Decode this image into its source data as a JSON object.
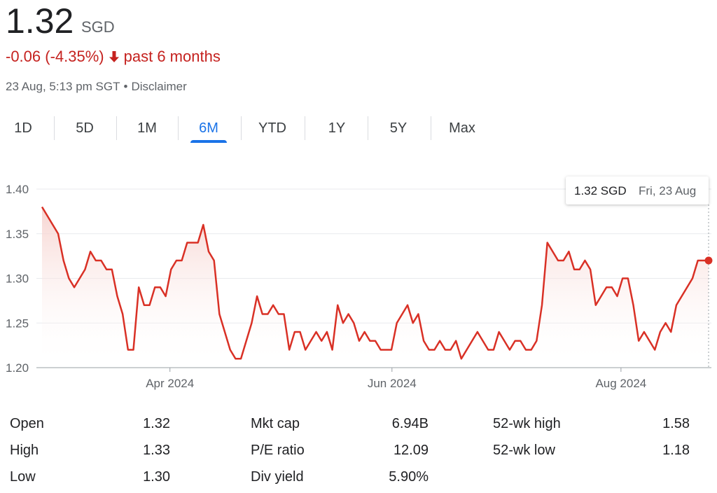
{
  "header": {
    "price": "1.32",
    "currency": "SGD",
    "change": "-0.06 (-4.35%)",
    "period": "past 6 months",
    "timestamp": "23 Aug, 5:13 pm SGT",
    "separator": "•",
    "disclaimer": "Disclaimer"
  },
  "tabs": {
    "items": [
      "1D",
      "5D",
      "1M",
      "6M",
      "YTD",
      "1Y",
      "5Y",
      "Max"
    ],
    "selected": 3
  },
  "chart_data": {
    "type": "line",
    "color": "#d93025",
    "grid": true,
    "values": [
      1.38,
      1.37,
      1.36,
      1.35,
      1.32,
      1.3,
      1.29,
      1.3,
      1.31,
      1.33,
      1.32,
      1.32,
      1.31,
      1.31,
      1.28,
      1.26,
      1.22,
      1.22,
      1.29,
      1.27,
      1.27,
      1.29,
      1.29,
      1.28,
      1.31,
      1.32,
      1.32,
      1.34,
      1.34,
      1.34,
      1.36,
      1.33,
      1.32,
      1.26,
      1.24,
      1.22,
      1.21,
      1.21,
      1.23,
      1.25,
      1.28,
      1.26,
      1.26,
      1.27,
      1.26,
      1.26,
      1.22,
      1.24,
      1.24,
      1.22,
      1.23,
      1.24,
      1.23,
      1.24,
      1.22,
      1.27,
      1.25,
      1.26,
      1.25,
      1.23,
      1.24,
      1.23,
      1.23,
      1.22,
      1.22,
      1.22,
      1.25,
      1.26,
      1.27,
      1.25,
      1.26,
      1.23,
      1.22,
      1.22,
      1.23,
      1.22,
      1.22,
      1.23,
      1.21,
      1.22,
      1.23,
      1.24,
      1.23,
      1.22,
      1.22,
      1.24,
      1.23,
      1.22,
      1.23,
      1.23,
      1.22,
      1.22,
      1.23,
      1.27,
      1.34,
      1.33,
      1.32,
      1.32,
      1.33,
      1.31,
      1.31,
      1.32,
      1.31,
      1.27,
      1.28,
      1.29,
      1.29,
      1.28,
      1.3,
      1.3,
      1.27,
      1.23,
      1.24,
      1.23,
      1.22,
      1.24,
      1.25,
      1.24,
      1.27,
      1.28,
      1.29,
      1.3,
      1.32,
      1.32,
      1.32
    ],
    "xlim": [
      0,
      124
    ],
    "xticks": [
      {
        "value": 23.8,
        "label": "Apr 2024"
      },
      {
        "value": 65.1,
        "label": "Jun 2024"
      },
      {
        "value": 107.7,
        "label": "Aug 2024"
      }
    ],
    "ylim": [
      1.2,
      1.4
    ],
    "yticks": [
      {
        "value": 1.2,
        "label": "1.20"
      },
      1.25,
      {
        "value": 1.3,
        "label": "1.30"
      },
      1.35,
      {
        "value": 1.4,
        "label": "1.40"
      }
    ],
    "tooltip": {
      "price": "1.32 SGD",
      "date": "Fri, 23 Aug"
    }
  },
  "stats": [
    [
      [
        "Open",
        "1.32"
      ],
      [
        "High",
        "1.33"
      ],
      [
        "Low",
        "1.30"
      ]
    ],
    [
      [
        "Mkt cap",
        "6.94B"
      ],
      [
        "P/E ratio",
        "12.09"
      ],
      [
        "Div yield",
        "5.90%"
      ]
    ],
    [
      [
        "52-wk high",
        "1.58"
      ],
      [
        "52-wk low",
        "1.18"
      ]
    ]
  ]
}
